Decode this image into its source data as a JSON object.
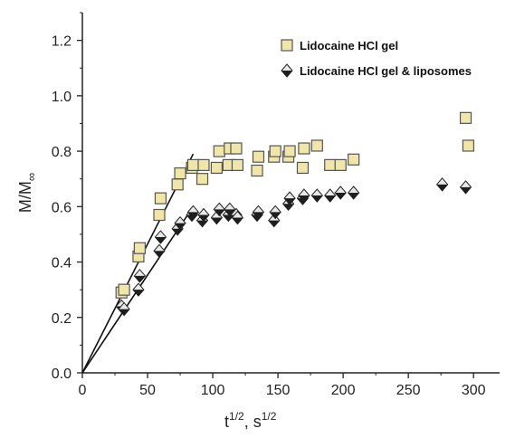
{
  "chart_data": {
    "type": "scatter",
    "ylabel_main": "M/M",
    "ylabel_sub": "∞",
    "xlabel_base1": "t",
    "xlabel_sup1": "1/2",
    "xlabel_mid": ", s",
    "xlabel_sup2": "1/2",
    "xlim": [
      0,
      320
    ],
    "ylim": [
      0,
      1.3
    ],
    "xticks": [
      0,
      50,
      100,
      150,
      200,
      250,
      300
    ],
    "yticks": [
      0.0,
      0.2,
      0.4,
      0.6,
      0.8,
      1.0,
      1.2
    ],
    "xtick_labels": [
      "0",
      "50",
      "100",
      "150",
      "200",
      "250",
      "300"
    ],
    "ytick_labels": [
      "0.0",
      "0.2",
      "0.4",
      "0.6",
      "0.8",
      "1.0",
      "1.2"
    ],
    "legend_position": "top-right",
    "series": [
      {
        "name": "Lidocaine HCl gel",
        "marker": "square",
        "color": "#f0e6a8",
        "edge": "#555555",
        "points": [
          [
            30,
            0.29
          ],
          [
            32,
            0.3
          ],
          [
            43,
            0.42
          ],
          [
            44,
            0.45
          ],
          [
            59,
            0.57
          ],
          [
            60,
            0.63
          ],
          [
            73,
            0.68
          ],
          [
            75,
            0.72
          ],
          [
            84,
            0.74
          ],
          [
            85,
            0.75
          ],
          [
            92,
            0.7
          ],
          [
            93,
            0.75
          ],
          [
            103,
            0.74
          ],
          [
            105,
            0.8
          ],
          [
            112,
            0.75
          ],
          [
            113,
            0.81
          ],
          [
            118,
            0.81
          ],
          [
            119,
            0.75
          ],
          [
            134,
            0.73
          ],
          [
            135,
            0.78
          ],
          [
            147,
            0.78
          ],
          [
            148,
            0.8
          ],
          [
            158,
            0.78
          ],
          [
            159,
            0.8
          ],
          [
            169,
            0.74
          ],
          [
            170,
            0.81
          ],
          [
            180,
            0.82
          ],
          [
            190,
            0.75
          ],
          [
            198,
            0.75
          ],
          [
            208,
            0.77
          ],
          [
            294,
            0.92
          ],
          [
            296,
            0.82
          ]
        ]
      },
      {
        "name": "Lidocaine HCl gel & liposomes",
        "marker": "diamond",
        "color": "#1e1e1e",
        "light": "#e8e8e8",
        "points": [
          [
            30,
            0.24
          ],
          [
            32,
            0.23
          ],
          [
            43,
            0.3
          ],
          [
            44,
            0.35
          ],
          [
            59,
            0.44
          ],
          [
            60,
            0.49
          ],
          [
            73,
            0.52
          ],
          [
            75,
            0.54
          ],
          [
            84,
            0.57
          ],
          [
            85,
            0.58
          ],
          [
            92,
            0.55
          ],
          [
            93,
            0.57
          ],
          [
            103,
            0.56
          ],
          [
            105,
            0.59
          ],
          [
            112,
            0.57
          ],
          [
            113,
            0.59
          ],
          [
            118,
            0.57
          ],
          [
            119,
            0.56
          ],
          [
            134,
            0.57
          ],
          [
            135,
            0.58
          ],
          [
            147,
            0.55
          ],
          [
            148,
            0.58
          ],
          [
            158,
            0.61
          ],
          [
            159,
            0.63
          ],
          [
            169,
            0.63
          ],
          [
            170,
            0.64
          ],
          [
            180,
            0.64
          ],
          [
            190,
            0.64
          ],
          [
            198,
            0.65
          ],
          [
            208,
            0.65
          ],
          [
            276,
            0.68
          ],
          [
            294,
            0.67
          ]
        ]
      }
    ],
    "fit_lines": [
      {
        "x": [
          0,
          85
        ],
        "y": [
          0,
          0.79
        ]
      },
      {
        "x": [
          0,
          85
        ],
        "y": [
          0,
          0.6
        ]
      }
    ]
  }
}
